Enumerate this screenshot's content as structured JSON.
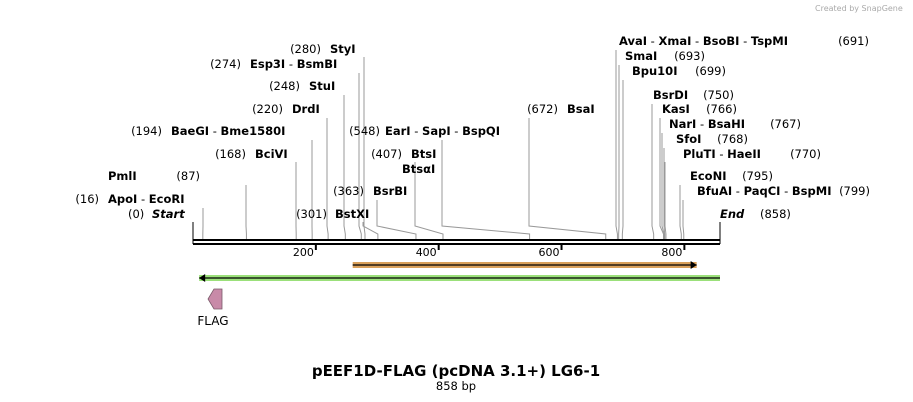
{
  "credit": {
    "text": "Created by SnapGene"
  },
  "sequence": {
    "length_bp": 858
  },
  "title": "pEEF1D-FLAG (pcDNA 3.1+) LG6-1",
  "subtitle": "858 bp",
  "ruler": {
    "ticks": [
      "200",
      "400",
      "600",
      "800"
    ]
  },
  "sites": [
    {
      "pos": 0,
      "pos_label": "(0)",
      "names": [
        "Start"
      ],
      "italic": true
    },
    {
      "pos": 16,
      "pos_label": "(16)",
      "names": [
        "ApoI",
        "EcoRI"
      ]
    },
    {
      "pos": 87,
      "pos_label": "(87)",
      "names": [
        "PmlI"
      ]
    },
    {
      "pos": 168,
      "pos_label": "(168)",
      "names": [
        "BciVI"
      ]
    },
    {
      "pos": 194,
      "pos_label": "(194)",
      "names": [
        "BaeGI",
        "Bme1580I"
      ]
    },
    {
      "pos": 220,
      "pos_label": "(220)",
      "names": [
        "DrdI"
      ]
    },
    {
      "pos": 248,
      "pos_label": "(248)",
      "names": [
        "StuI"
      ]
    },
    {
      "pos": 274,
      "pos_label": "(274)",
      "names": [
        "Esp3I",
        "BsmBI"
      ]
    },
    {
      "pos": 280,
      "pos_label": "(280)",
      "names": [
        "StyI"
      ]
    },
    {
      "pos": 301,
      "pos_label": "(301)",
      "names": [
        "BstXI"
      ]
    },
    {
      "pos": 363,
      "pos_label": "(363)",
      "names": [
        "BsrBI"
      ]
    },
    {
      "pos": 407,
      "pos_label": "(407)",
      "names": [
        "BtsI",
        "BtsαI"
      ]
    },
    {
      "pos": 548,
      "pos_label": "(548)",
      "names": [
        "EarI",
        "SapI",
        "BspQI"
      ]
    },
    {
      "pos": 672,
      "pos_label": "(672)",
      "names": [
        "BsaI"
      ]
    },
    {
      "pos": 691,
      "pos_label": "(691)",
      "names": [
        "AvaI",
        "XmaI",
        "BsoBI",
        "TspMI"
      ]
    },
    {
      "pos": 693,
      "pos_label": "(693)",
      "names": [
        "SmaI"
      ]
    },
    {
      "pos": 699,
      "pos_label": "(699)",
      "names": [
        "Bpu10I"
      ]
    },
    {
      "pos": 750,
      "pos_label": "(750)",
      "names": [
        "BsrDI"
      ]
    },
    {
      "pos": 766,
      "pos_label": "(766)",
      "names": [
        "KasI"
      ]
    },
    {
      "pos": 767,
      "pos_label": "(767)",
      "names": [
        "NarI",
        "BsaHI"
      ]
    },
    {
      "pos": 768,
      "pos_label": "(768)",
      "names": [
        "SfoI"
      ]
    },
    {
      "pos": 770,
      "pos_label": "(770)",
      "names": [
        "PluTI",
        "HaeII"
      ]
    },
    {
      "pos": 795,
      "pos_label": "(795)",
      "names": [
        "EcoNI"
      ]
    },
    {
      "pos": 799,
      "pos_label": "(799)",
      "names": [
        "BfuAI",
        "PaqCI",
        "BspMI"
      ]
    },
    {
      "pos": 858,
      "pos_label": "(858)",
      "names": [
        "End"
      ],
      "italic": true
    }
  ],
  "features": [
    {
      "name": "orange-arrow",
      "type": "arrow",
      "color": "#d9a05a",
      "start": 260,
      "end": 820,
      "direction": "forward"
    },
    {
      "name": "green-arrow",
      "type": "arrow",
      "color": "#9be07a",
      "start": 10,
      "end": 858,
      "direction": "reverse"
    },
    {
      "name": "flag",
      "type": "feature-box",
      "color": "#c88aa8",
      "label": "FLAG",
      "start": 18,
      "end": 48,
      "direction": "reverse"
    }
  ],
  "colors": {
    "backbone": "#000000",
    "site_line": "#999999"
  }
}
